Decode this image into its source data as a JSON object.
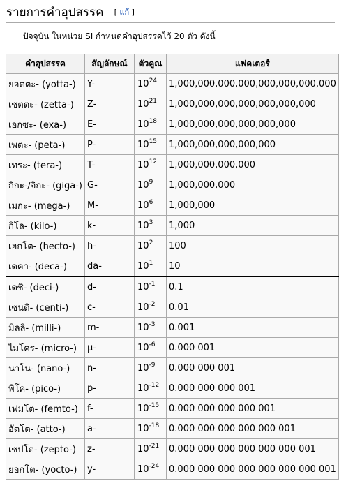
{
  "heading": {
    "title": "รายการคำอุปสรรค",
    "edit_link": "แก้"
  },
  "intro": "ปัจจุบัน ในหน่วย SI กำหนดคำอุปสรรคไว้ 20 ตัว ดังนี้",
  "table": {
    "headers": [
      "คำอุปสรรค",
      "สัญลักษณ์",
      "ตัวคูณ",
      "แฟคเตอร์"
    ],
    "rows": [
      {
        "prefix": "ยอตตะ- (yotta-)",
        "symbol": "Y-",
        "base": "10",
        "exp": "24",
        "factor": "1,000,000,000,000,000,000,000,000"
      },
      {
        "prefix": "เซตตะ- (zetta-)",
        "symbol": "Z-",
        "base": "10",
        "exp": "21",
        "factor": "1,000,000,000,000,000,000,000"
      },
      {
        "prefix": "เอกซะ- (exa-)",
        "symbol": "E-",
        "base": "10",
        "exp": "18",
        "factor": "1,000,000,000,000,000,000"
      },
      {
        "prefix": "เพตะ- (peta-)",
        "symbol": "P-",
        "base": "10",
        "exp": "15",
        "factor": "1,000,000,000,000,000"
      },
      {
        "prefix": "เทระ- (tera-)",
        "symbol": "T-",
        "base": "10",
        "exp": "12",
        "factor": "1,000,000,000,000"
      },
      {
        "prefix": "กิกะ-/จิกะ- (giga-)",
        "symbol": "G-",
        "base": "10",
        "exp": "9",
        "factor": "1,000,000,000"
      },
      {
        "prefix": "เมกะ- (mega-)",
        "symbol": "M-",
        "base": "10",
        "exp": "6",
        "factor": "1,000,000"
      },
      {
        "prefix": "กิโล- (kilo-)",
        "symbol": "k-",
        "base": "10",
        "exp": "3",
        "factor": "1,000"
      },
      {
        "prefix": "เฮกโต- (hecto-)",
        "symbol": "h-",
        "base": "10",
        "exp": "2",
        "factor": "100"
      },
      {
        "prefix": "เดคา- (deca-)",
        "symbol": "da-",
        "base": "10",
        "exp": "1",
        "factor": "10"
      },
      {
        "prefix": "เดซิ- (deci-)",
        "symbol": "d-",
        "base": "10",
        "exp": "-1",
        "factor": "0.1"
      },
      {
        "prefix": "เซนติ- (centi-)",
        "symbol": "c-",
        "base": "10",
        "exp": "-2",
        "factor": "0.01"
      },
      {
        "prefix": "มิลลิ- (milli-)",
        "symbol": "m-",
        "base": "10",
        "exp": "-3",
        "factor": "0.001"
      },
      {
        "prefix": "ไมโคร- (micro-)",
        "symbol": "μ-",
        "base": "10",
        "exp": "-6",
        "factor": "0.000 001"
      },
      {
        "prefix": "นาโน- (nano-)",
        "symbol": "n-",
        "base": "10",
        "exp": "-9",
        "factor": "0.000 000 001"
      },
      {
        "prefix": "พิโค- (pico-)",
        "symbol": "p-",
        "base": "10",
        "exp": "-12",
        "factor": "0.000 000 000 001"
      },
      {
        "prefix": "เฟมโต- (femto-)",
        "symbol": "f-",
        "base": "10",
        "exp": "-15",
        "factor": "0.000 000 000 000 001"
      },
      {
        "prefix": "อัตโต- (atto-)",
        "symbol": "a-",
        "base": "10",
        "exp": "-18",
        "factor": "0.000 000 000 000 000 001"
      },
      {
        "prefix": "เซปโต- (zepto-)",
        "symbol": "z-",
        "base": "10",
        "exp": "-21",
        "factor": "0.000 000 000 000 000 000 001"
      },
      {
        "prefix": "ยอกโต- (yocto-)",
        "symbol": "y-",
        "base": "10",
        "exp": "-24",
        "factor": "0.000 000 000 000 000 000 000 001"
      }
    ]
  }
}
